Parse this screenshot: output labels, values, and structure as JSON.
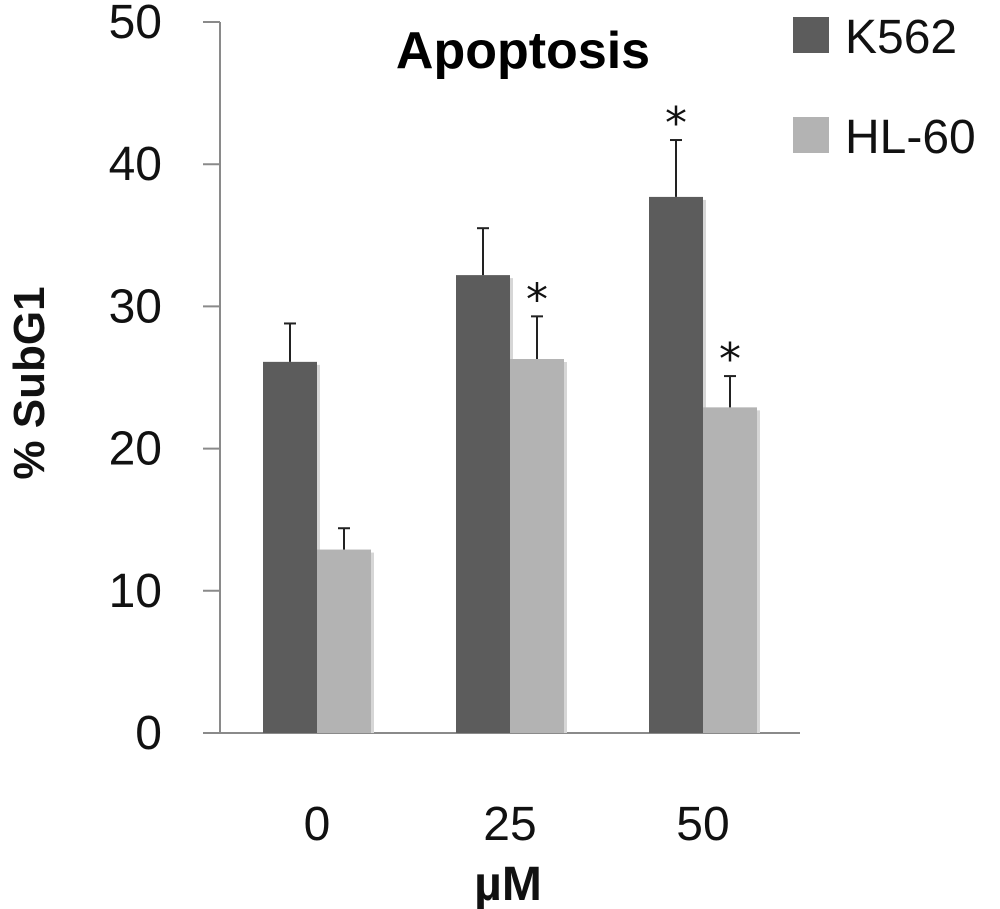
{
  "chart_data": {
    "type": "bar",
    "title": "Apoptosis",
    "xlabel": "µM",
    "ylabel": "% SubG1",
    "categories": [
      "0",
      "25",
      "50"
    ],
    "ylim": [
      0,
      50
    ],
    "yticks": [
      "0",
      "10",
      "20",
      "30",
      "40",
      "50"
    ],
    "grid": false,
    "legend_position": "top-right",
    "series": [
      {
        "name": "K562",
        "color": "#5c5c5c",
        "values": [
          26.1,
          32.2,
          37.7
        ],
        "errors": [
          2.7,
          3.3,
          4.0
        ],
        "significance": [
          "",
          "",
          "*"
        ]
      },
      {
        "name": "HL-60",
        "color": "#b3b3b3",
        "values": [
          12.9,
          26.3,
          22.9
        ],
        "errors": [
          1.5,
          3.0,
          2.2
        ],
        "significance": [
          "",
          "*",
          "*"
        ]
      }
    ]
  }
}
